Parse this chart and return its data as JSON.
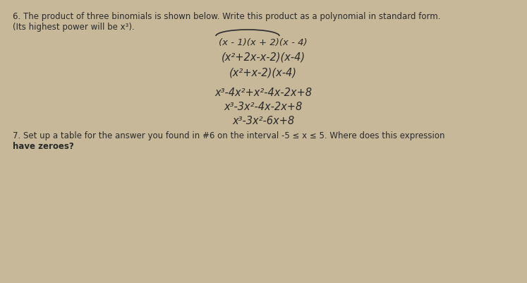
{
  "bg_color": "#c8b89a",
  "text_color": "#2a2a2a",
  "title_line1": "6. The product of three binomials is shown below. Write this product as a polynomial in standard form.",
  "title_line2": "(Its highest power will be x³).",
  "line1": "(x - 1)(x + 2)(x - 4)",
  "line2": "(x²+2x-x-2)(x-4)",
  "line3": "(x²+x-2)(x-4)",
  "line4": "x³-4x²+x²-4x-2x+8",
  "line5": "x³-3x²-4x-2x+8",
  "line6": "x³-3x²-6x+8",
  "footer_line1": "7. Set up a table for the answer you found in #6 on the interval -5 ≤ x ≤ 5. Where does this expression",
  "footer_line2": "have zeroes?",
  "title_fontsize": 8.5,
  "body_fontsize": 10.5,
  "footer_fontsize": 8.5
}
